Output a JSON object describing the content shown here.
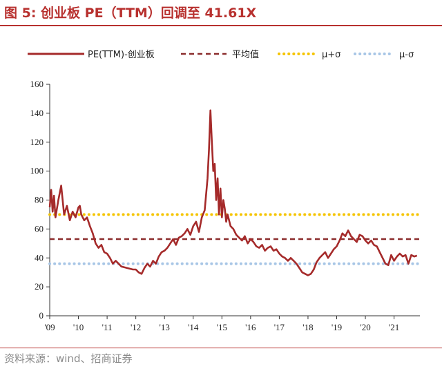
{
  "header": {
    "title": "图 5: 创业板 PE（TTM）回调至 41.61X"
  },
  "footer": {
    "source": "资料来源：wind、招商证券"
  },
  "colors": {
    "accent": "#b8312f",
    "pe_line": "#a52a2a",
    "mean_line": "#8b2d2d",
    "upper_band": "#f5c400",
    "lower_band": "#a8c6e6"
  },
  "chart_data": {
    "type": "line",
    "title": "",
    "xlabel": "",
    "ylabel": "",
    "ylim": [
      0,
      160
    ],
    "yticks": [
      0,
      20,
      40,
      60,
      80,
      100,
      120,
      140,
      160
    ],
    "xlim": [
      2009.0,
      2021.9
    ],
    "xticks": [
      {
        "value": 2009,
        "label": "'09"
      },
      {
        "value": 2010,
        "label": "'10"
      },
      {
        "value": 2011,
        "label": "'11"
      },
      {
        "value": 2012,
        "label": "'12"
      },
      {
        "value": 2013,
        "label": "'13"
      },
      {
        "value": 2014,
        "label": "'14"
      },
      {
        "value": 2015,
        "label": "'15"
      },
      {
        "value": 2016,
        "label": "'16"
      },
      {
        "value": 2017,
        "label": "'17"
      },
      {
        "value": 2018,
        "label": "'18"
      },
      {
        "value": 2019,
        "label": "'19"
      },
      {
        "value": 2020,
        "label": "'20"
      },
      {
        "value": 2021,
        "label": "'21"
      }
    ],
    "legend_position": "top",
    "series": [
      {
        "name": "PE(TTM)-创业板",
        "style": "solid",
        "x": [
          2009.0,
          2009.05,
          2009.1,
          2009.15,
          2009.2,
          2009.3,
          2009.4,
          2009.5,
          2009.6,
          2009.7,
          2009.8,
          2009.9,
          2010.0,
          2010.05,
          2010.1,
          2010.2,
          2010.3,
          2010.4,
          2010.5,
          2010.6,
          2010.7,
          2010.8,
          2010.9,
          2011.0,
          2011.1,
          2011.2,
          2011.3,
          2011.5,
          2011.7,
          2011.9,
          2012.0,
          2012.1,
          2012.2,
          2012.3,
          2012.4,
          2012.5,
          2012.6,
          2012.7,
          2012.8,
          2012.9,
          2013.0,
          2013.1,
          2013.2,
          2013.3,
          2013.4,
          2013.5,
          2013.6,
          2013.7,
          2013.8,
          2013.9,
          2014.0,
          2014.1,
          2014.2,
          2014.3,
          2014.4,
          2014.5,
          2014.55,
          2014.6,
          2014.65,
          2014.7,
          2014.75,
          2014.8,
          2014.85,
          2014.9,
          2014.95,
          2015.0,
          2015.05,
          2015.1,
          2015.15,
          2015.2,
          2015.3,
          2015.4,
          2015.5,
          2015.6,
          2015.7,
          2015.8,
          2015.9,
          2016.0,
          2016.1,
          2016.2,
          2016.3,
          2016.4,
          2016.5,
          2016.6,
          2016.7,
          2016.8,
          2016.9,
          2017.0,
          2017.1,
          2017.2,
          2017.3,
          2017.4,
          2017.5,
          2017.6,
          2017.7,
          2017.8,
          2017.9,
          2018.0,
          2018.1,
          2018.2,
          2018.3,
          2018.4,
          2018.5,
          2018.6,
          2018.7,
          2018.8,
          2018.9,
          2019.0,
          2019.1,
          2019.2,
          2019.3,
          2019.4,
          2019.5,
          2019.6,
          2019.7,
          2019.8,
          2019.9,
          2020.0,
          2020.1,
          2020.2,
          2020.3,
          2020.4,
          2020.5,
          2020.6,
          2020.7,
          2020.8,
          2020.9,
          2021.0,
          2021.1,
          2021.2,
          2021.3,
          2021.4,
          2021.5,
          2021.6,
          2021.7,
          2021.8
        ],
        "y": [
          75,
          87,
          72,
          83,
          68,
          80,
          90,
          70,
          76,
          66,
          72,
          68,
          75,
          76,
          70,
          66,
          68,
          62,
          57,
          50,
          47,
          49,
          44,
          43,
          40,
          36,
          38,
          34,
          33,
          32,
          32,
          30,
          29,
          33,
          36,
          34,
          38,
          36,
          41,
          44,
          45,
          47,
          50,
          53,
          49,
          54,
          55,
          57,
          60,
          56,
          62,
          65,
          58,
          68,
          73,
          95,
          115,
          142,
          120,
          100,
          105,
          80,
          95,
          70,
          88,
          68,
          80,
          74,
          65,
          70,
          62,
          60,
          56,
          54,
          52,
          55,
          50,
          53,
          51,
          48,
          47,
          49,
          45,
          47,
          48,
          45,
          46,
          43,
          41,
          40,
          38,
          40,
          38,
          36,
          33,
          30,
          29,
          28,
          29,
          32,
          37,
          40,
          42,
          44,
          40,
          43,
          46,
          48,
          52,
          57,
          55,
          59,
          55,
          53,
          51,
          56,
          55,
          52,
          50,
          52,
          49,
          48,
          44,
          40,
          36,
          35,
          42,
          38,
          41,
          43,
          41,
          42,
          36,
          42,
          41,
          41.61
        ]
      },
      {
        "name": "平均值",
        "style": "dashed",
        "value": 53
      },
      {
        "name": "μ+σ",
        "style": "dotted",
        "value": 70
      },
      {
        "name": "μ-σ",
        "style": "dotted",
        "value": 36
      }
    ]
  }
}
